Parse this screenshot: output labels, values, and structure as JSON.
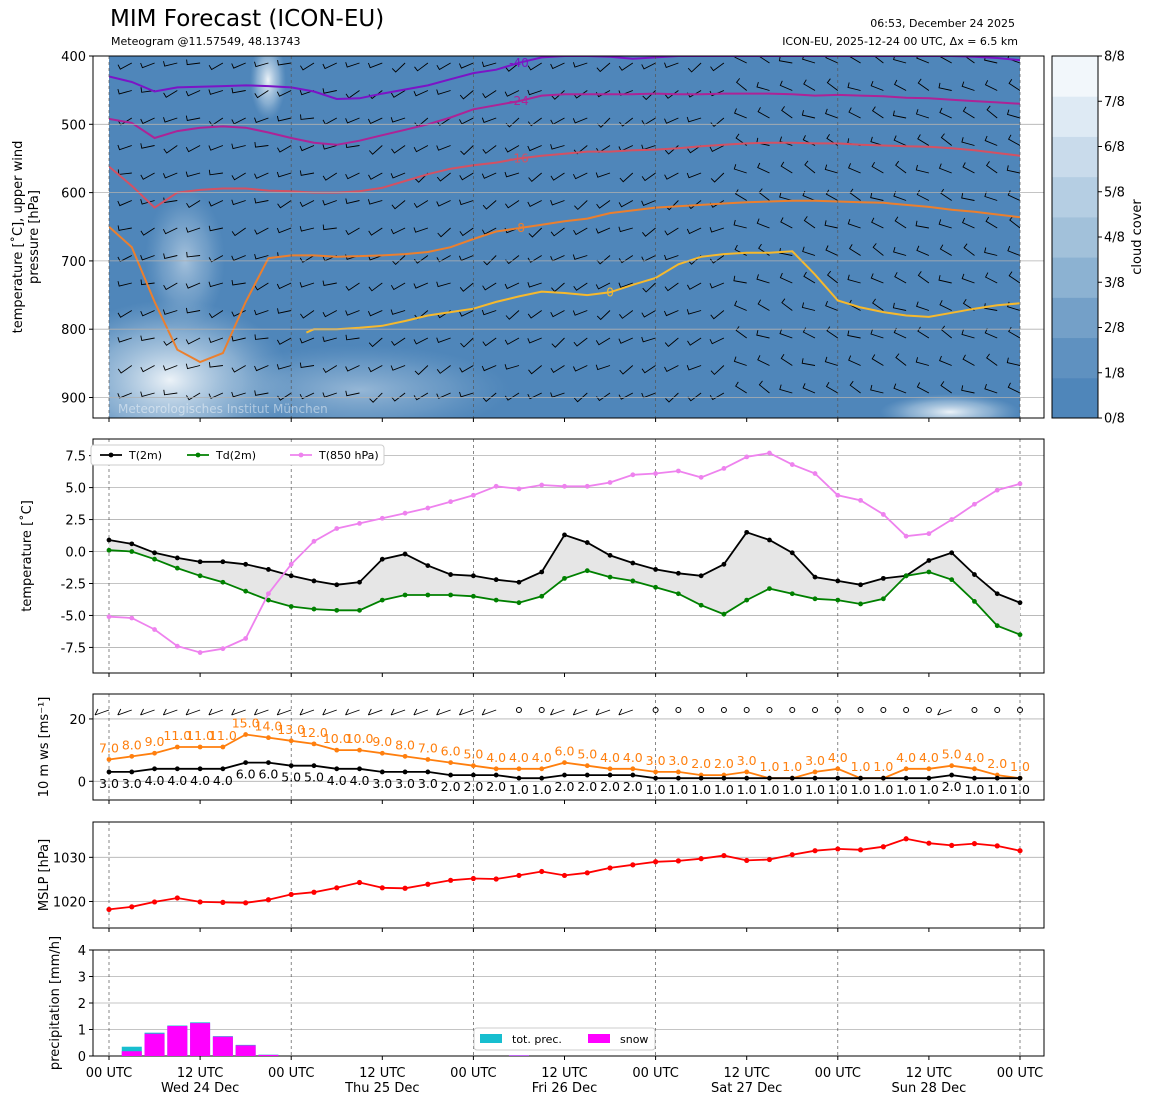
{
  "header": {
    "title": "MIM Forecast (ICON-EU)",
    "subtitle": "Meteogram @11.57549, 48.13743",
    "issued": "06:53, December 24 2025",
    "run_info": "ICON-EU, 2025-12-24 00 UTC, Δx = 6.5 km"
  },
  "watermark": "Meteorologisches Institut München",
  "x_axis": {
    "tick_labels": [
      "00 UTC",
      "12 UTC",
      "00 UTC",
      "12 UTC",
      "00 UTC",
      "12 UTC",
      "00 UTC",
      "12 UTC",
      "00 UTC",
      "12 UTC",
      "00 UTC"
    ],
    "tick_hours": [
      0,
      12,
      24,
      36,
      48,
      60,
      72,
      84,
      96,
      108,
      120
    ],
    "day_labels": [
      "Wed 24 Dec",
      "Thu 25 Dec",
      "Fri 26 Dec",
      "Sat 27 Dec",
      "Sun 28 Dec"
    ],
    "day_label_hours": [
      12,
      36,
      60,
      84,
      108
    ]
  },
  "colors": {
    "cloud_base": "#4f86ba",
    "t2m": "#000000",
    "td2m": "#008000",
    "t850": "#ee82ee",
    "wind_gust": "#ff7f0e",
    "wind_mean": "#000000",
    "mslp": "#ff0000",
    "tot_prec": "#17becf",
    "snow": "#ff00ff",
    "dewpoint_fill": "#e6e6e6"
  },
  "chart_data": [
    {
      "type": "heatmap",
      "panel": "upper_air",
      "ylabel": "temperature [˚C], upper wind\npressure [hPa]",
      "ylim": [
        930,
        400
      ],
      "y_ticks": [
        400,
        500,
        600,
        700,
        800,
        900
      ],
      "colorbar": {
        "label": "cloud cover",
        "ticks": [
          "0/8",
          "1/8",
          "2/8",
          "3/8",
          "4/8",
          "5/8",
          "6/8",
          "7/8",
          "8/8"
        ],
        "colors": [
          "#4f86ba",
          "#5f91c0",
          "#74a0c8",
          "#8cb2d2",
          "#a2c1da",
          "#b5cee3",
          "#c9dbeb",
          "#deeaf4",
          "#f2f7fb"
        ]
      },
      "isotherms": [
        {
          "label": "-40",
          "color": "#7b14c6",
          "x": [
            0,
            3,
            6,
            9,
            12,
            15,
            18,
            21,
            24,
            27,
            30,
            33,
            36,
            39,
            42,
            45,
            48,
            51,
            54,
            57,
            60,
            63,
            66,
            69,
            72,
            75,
            78,
            81,
            84,
            87,
            90,
            93,
            96,
            99,
            102,
            105,
            108,
            111,
            114,
            117,
            120
          ],
          "p": [
            430,
            438,
            452,
            446,
            445,
            444,
            443,
            444,
            446,
            452,
            463,
            462,
            455,
            449,
            443,
            434,
            425,
            420,
            410,
            402,
            400,
            400,
            401,
            404,
            402,
            400,
            400,
            400,
            400,
            400,
            400,
            400,
            400,
            400,
            400,
            400,
            400,
            400,
            401,
            403,
            406
          ]
        },
        {
          "label": "-24",
          "color": "#ad2396",
          "x": [
            0,
            3,
            6,
            9,
            12,
            15,
            18,
            21,
            24,
            27,
            30,
            33,
            36,
            39,
            42,
            45,
            48,
            51,
            54,
            57,
            60,
            63,
            66,
            69,
            72,
            75,
            78,
            81,
            84,
            87,
            90,
            93,
            96,
            99,
            102,
            105,
            108,
            111,
            114,
            117,
            120
          ],
          "p": [
            492,
            498,
            520,
            510,
            505,
            503,
            505,
            512,
            520,
            527,
            530,
            524,
            516,
            508,
            500,
            490,
            478,
            472,
            466,
            458,
            456,
            456,
            456,
            456,
            455,
            456,
            456,
            455,
            455,
            455,
            456,
            458,
            457,
            458,
            459,
            461,
            462,
            464,
            466,
            468,
            470
          ]
        },
        {
          "label": "-16",
          "color": "#d35163",
          "x": [
            0,
            3,
            6,
            9,
            12,
            15,
            18,
            21,
            24,
            27,
            30,
            33,
            36,
            39,
            42,
            45,
            48,
            51,
            54,
            57,
            60,
            63,
            66,
            69,
            72,
            75,
            78,
            81,
            84,
            87,
            90,
            93,
            96,
            99,
            102,
            105,
            108,
            111,
            114,
            117,
            120
          ],
          "p": [
            562,
            590,
            622,
            600,
            596,
            594,
            594,
            597,
            598,
            600,
            600,
            598,
            593,
            583,
            573,
            565,
            560,
            556,
            550,
            546,
            543,
            540,
            540,
            538,
            537,
            535,
            532,
            530,
            528,
            527,
            527,
            528,
            528,
            530,
            531,
            532,
            533,
            535,
            538,
            542,
            546
          ]
        },
        {
          "label": "-8",
          "color": "#eb7f2e",
          "x": [
            0,
            3,
            6,
            9,
            12,
            15,
            18,
            21,
            24,
            27,
            30,
            33,
            36,
            39,
            42,
            45,
            48,
            51,
            54,
            57,
            60,
            63,
            66,
            69,
            72,
            75,
            78,
            81,
            84,
            87,
            90,
            93,
            96,
            99,
            102,
            105,
            108,
            111,
            114,
            117,
            120
          ],
          "p": [
            650,
            680,
            760,
            830,
            848,
            835,
            760,
            696,
            692,
            692,
            694,
            693,
            692,
            690,
            687,
            680,
            668,
            657,
            652,
            647,
            642,
            638,
            630,
            626,
            622,
            620,
            618,
            616,
            614,
            613,
            612,
            612,
            613,
            614,
            615,
            618,
            621,
            625,
            628,
            632,
            636
          ]
        },
        {
          "label": "0",
          "color": "#f6b92d",
          "x": [
            26,
            27,
            30,
            33,
            36,
            39,
            42,
            45,
            48,
            51,
            54,
            57,
            60,
            63,
            66,
            69,
            72,
            75,
            78,
            81,
            84,
            87,
            90,
            93,
            96,
            99,
            102,
            105,
            108,
            111,
            114,
            117,
            120
          ],
          "p": [
            805,
            800,
            800,
            798,
            795,
            788,
            780,
            775,
            770,
            760,
            752,
            745,
            747,
            750,
            746,
            735,
            725,
            705,
            694,
            690,
            688,
            688,
            686,
            720,
            758,
            768,
            775,
            780,
            782,
            776,
            770,
            765,
            762
          ]
        }
      ]
    },
    {
      "type": "line",
      "panel": "surface_temperature",
      "ylabel": "temperature [˚C]",
      "ylim": [
        -9.5,
        8.8
      ],
      "y_ticks": [
        -7.5,
        -5.0,
        -2.5,
        0.0,
        2.5,
        5.0,
        7.5
      ],
      "x_hours": [
        0,
        3,
        6,
        9,
        12,
        15,
        18,
        21,
        24,
        27,
        30,
        33,
        36,
        39,
        42,
        45,
        48,
        51,
        54,
        57,
        60,
        63,
        66,
        69,
        72,
        75,
        78,
        81,
        84,
        87,
        90,
        93,
        96,
        99,
        102,
        105,
        108,
        111,
        114,
        117,
        120
      ],
      "series": [
        {
          "name": "T(2m)",
          "values": [
            0.9,
            0.6,
            -0.1,
            -0.5,
            -0.8,
            -0.8,
            -1.0,
            -1.4,
            -1.9,
            -2.3,
            -2.6,
            -2.4,
            -0.6,
            -0.2,
            -1.1,
            -1.8,
            -1.9,
            -2.2,
            -2.4,
            -1.6,
            1.3,
            0.7,
            -0.3,
            -0.9,
            -1.4,
            -1.7,
            -1.9,
            -1.0,
            1.5,
            0.9,
            -0.1,
            -2.0,
            -2.3,
            -2.6,
            -2.1,
            -1.9,
            -0.7,
            -0.1,
            -1.8,
            -3.3,
            -4.0
          ]
        },
        {
          "name": "Td(2m)",
          "values": [
            0.1,
            0.0,
            -0.6,
            -1.3,
            -1.9,
            -2.4,
            -3.1,
            -3.8,
            -4.3,
            -4.5,
            -4.6,
            -4.6,
            -3.8,
            -3.4,
            -3.4,
            -3.4,
            -3.5,
            -3.8,
            -4.0,
            -3.5,
            -2.1,
            -1.5,
            -2.0,
            -2.3,
            -2.8,
            -3.3,
            -4.2,
            -4.9,
            -3.8,
            -2.9,
            -3.3,
            -3.7,
            -3.8,
            -4.1,
            -3.7,
            -1.9,
            -1.6,
            -2.2,
            -3.9,
            -5.8,
            -6.5
          ]
        },
        {
          "name": "T(850 hPa)",
          "values": [
            -5.1,
            -5.2,
            -6.1,
            -7.4,
            -7.9,
            -7.6,
            -6.8,
            -3.3,
            -1.0,
            0.8,
            1.8,
            2.2,
            2.6,
            3.0,
            3.4,
            3.9,
            4.4,
            5.1,
            4.9,
            5.2,
            5.1,
            5.1,
            5.4,
            6.0,
            6.1,
            6.3,
            5.8,
            6.5,
            7.4,
            7.7,
            6.8,
            6.1,
            4.4,
            4.0,
            2.9,
            1.2,
            1.4,
            2.5,
            3.7,
            4.8,
            5.3
          ]
        }
      ]
    },
    {
      "type": "line",
      "panel": "wind",
      "ylabel": "10 m ws [ms⁻¹]",
      "ylim": [
        -6,
        28
      ],
      "y_ticks": [
        0,
        20
      ],
      "x_hours": [
        0,
        3,
        6,
        9,
        12,
        15,
        18,
        21,
        24,
        27,
        30,
        33,
        36,
        39,
        42,
        45,
        48,
        51,
        54,
        57,
        60,
        63,
        66,
        69,
        72,
        75,
        78,
        81,
        84,
        87,
        90,
        93,
        96,
        99,
        102,
        105,
        108,
        111,
        114,
        117,
        120
      ],
      "series": [
        {
          "name": "gust",
          "values": [
            7.0,
            8.0,
            9.0,
            11.0,
            11.0,
            11.0,
            15.0,
            14.0,
            13.0,
            12.0,
            10.0,
            10.0,
            9.0,
            8.0,
            7.0,
            6.0,
            5.0,
            4.0,
            4.0,
            4.0,
            6.0,
            5.0,
            4.0,
            4.0,
            3.0,
            3.0,
            2.0,
            2.0,
            3.0,
            1.0,
            1.0,
            3.0,
            4.0,
            1.0,
            1.0,
            4.0,
            4.0,
            5.0,
            4.0,
            2.0,
            1.0
          ]
        },
        {
          "name": "mean",
          "values": [
            3.0,
            3.0,
            4.0,
            4.0,
            4.0,
            4.0,
            6.0,
            6.0,
            5.0,
            5.0,
            4.0,
            4.0,
            3.0,
            3.0,
            3.0,
            2.0,
            2.0,
            2.0,
            1.0,
            1.0,
            2.0,
            2.0,
            2.0,
            2.0,
            1.0,
            1.0,
            1.0,
            1.0,
            1.0,
            1.0,
            1.0,
            1.0,
            1.0,
            1.0,
            1.0,
            1.0,
            1.0,
            2.0,
            1.0,
            1.0,
            1.0
          ]
        }
      ],
      "gust_labels": [
        "7.0",
        "8.0",
        "9.0",
        "11.0",
        "11.0",
        "11.0",
        "15.0",
        "14.0",
        "13.0",
        "12.0",
        "10.0",
        "10.0",
        "9.0",
        "8.0",
        "7.0",
        "6.0",
        "5.0",
        "4.0",
        "4.0",
        "4.0",
        "6.0",
        "5.0",
        "4.0",
        "4.0",
        "3.0",
        "3.0",
        "2.0",
        "2.0",
        "3.0",
        "1.0",
        "1.0",
        "3.0",
        "4.0",
        "1.0",
        "1.0",
        "4.0",
        "4.0",
        "5.0",
        "4.0",
        "2.0",
        "1.0"
      ],
      "mean_labels": [
        "3.0",
        "3.0",
        "4.0",
        "4.0",
        "4.0",
        "4.0",
        "6.0",
        "6.0",
        "5.0",
        "5.0",
        "4.0",
        "4.0",
        "3.0",
        "3.0",
        "3.0",
        "2.0",
        "2.0",
        "2.0",
        "1.0",
        "1.0",
        "2.0",
        "2.0",
        "2.0",
        "2.0",
        "1.0",
        "1.0",
        "1.0",
        "1.0",
        "1.0",
        "1.0",
        "1.0",
        "1.0",
        "1.0",
        "1.0",
        "1.0",
        "1.0",
        "1.0",
        "2.0",
        "1.0",
        "1.0",
        "1.0"
      ]
    },
    {
      "type": "line",
      "panel": "mslp",
      "ylabel": "MSLP [hPa]",
      "ylim": [
        1014,
        1038
      ],
      "y_ticks": [
        1020,
        1030
      ],
      "x_hours": [
        0,
        3,
        6,
        9,
        12,
        15,
        18,
        21,
        24,
        27,
        30,
        33,
        36,
        39,
        42,
        45,
        48,
        51,
        54,
        57,
        60,
        63,
        66,
        69,
        72,
        75,
        78,
        81,
        84,
        87,
        90,
        93,
        96,
        99,
        102,
        105,
        108,
        111,
        114,
        117,
        120
      ],
      "series": [
        {
          "name": "MSLP",
          "values": [
            1018.2,
            1018.8,
            1019.9,
            1020.8,
            1019.9,
            1019.8,
            1019.7,
            1020.4,
            1021.6,
            1022.1,
            1023.1,
            1024.3,
            1023.1,
            1023.0,
            1023.9,
            1024.8,
            1025.2,
            1025.1,
            1025.9,
            1026.8,
            1025.9,
            1026.5,
            1027.6,
            1028.3,
            1029.0,
            1029.2,
            1029.7,
            1030.4,
            1029.3,
            1029.5,
            1030.6,
            1031.5,
            1031.9,
            1031.7,
            1032.4,
            1034.2,
            1033.2,
            1032.7,
            1033.1,
            1032.6,
            1031.5
          ]
        }
      ]
    },
    {
      "type": "bar",
      "panel": "precipitation",
      "ylabel": "precipitation [mm/h]",
      "ylim": [
        0,
        4
      ],
      "y_ticks": [
        0,
        1,
        2,
        3,
        4
      ],
      "x_hours": [
        3,
        6,
        9,
        12,
        15,
        18,
        21,
        54
      ],
      "series": [
        {
          "name": "tot. prec.",
          "values": [
            0.35,
            0.88,
            1.15,
            1.27,
            0.75,
            0.42,
            0.05,
            0.03
          ]
        },
        {
          "name": "snow",
          "values": [
            0.18,
            0.84,
            1.13,
            1.24,
            0.73,
            0.4,
            0.04,
            0.02
          ]
        }
      ]
    }
  ]
}
